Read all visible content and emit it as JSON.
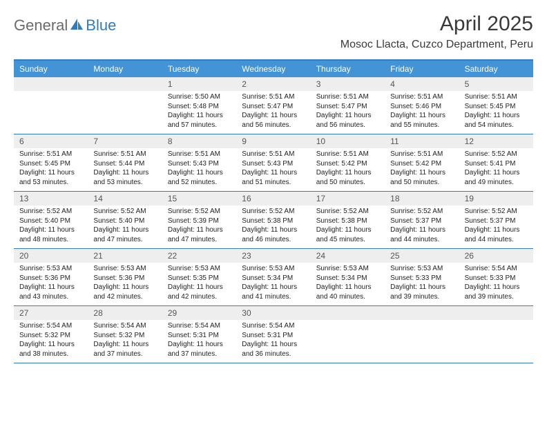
{
  "logo": {
    "general": "General",
    "blue": "Blue"
  },
  "title": "April 2025",
  "location": "Mosoc Llacta, Cuzco Department, Peru",
  "header_bg": "#4294d6",
  "accent": "#2f7dc0",
  "dayHeaders": [
    "Sunday",
    "Monday",
    "Tuesday",
    "Wednesday",
    "Thursday",
    "Friday",
    "Saturday"
  ],
  "weeks": [
    [
      {
        "num": "",
        "sunrise": "",
        "sunset": "",
        "daylight": ""
      },
      {
        "num": "",
        "sunrise": "",
        "sunset": "",
        "daylight": ""
      },
      {
        "num": "1",
        "sunrise": "Sunrise: 5:50 AM",
        "sunset": "Sunset: 5:48 PM",
        "daylight": "Daylight: 11 hours and 57 minutes."
      },
      {
        "num": "2",
        "sunrise": "Sunrise: 5:51 AM",
        "sunset": "Sunset: 5:47 PM",
        "daylight": "Daylight: 11 hours and 56 minutes."
      },
      {
        "num": "3",
        "sunrise": "Sunrise: 5:51 AM",
        "sunset": "Sunset: 5:47 PM",
        "daylight": "Daylight: 11 hours and 56 minutes."
      },
      {
        "num": "4",
        "sunrise": "Sunrise: 5:51 AM",
        "sunset": "Sunset: 5:46 PM",
        "daylight": "Daylight: 11 hours and 55 minutes."
      },
      {
        "num": "5",
        "sunrise": "Sunrise: 5:51 AM",
        "sunset": "Sunset: 5:45 PM",
        "daylight": "Daylight: 11 hours and 54 minutes."
      }
    ],
    [
      {
        "num": "6",
        "sunrise": "Sunrise: 5:51 AM",
        "sunset": "Sunset: 5:45 PM",
        "daylight": "Daylight: 11 hours and 53 minutes."
      },
      {
        "num": "7",
        "sunrise": "Sunrise: 5:51 AM",
        "sunset": "Sunset: 5:44 PM",
        "daylight": "Daylight: 11 hours and 53 minutes."
      },
      {
        "num": "8",
        "sunrise": "Sunrise: 5:51 AM",
        "sunset": "Sunset: 5:43 PM",
        "daylight": "Daylight: 11 hours and 52 minutes."
      },
      {
        "num": "9",
        "sunrise": "Sunrise: 5:51 AM",
        "sunset": "Sunset: 5:43 PM",
        "daylight": "Daylight: 11 hours and 51 minutes."
      },
      {
        "num": "10",
        "sunrise": "Sunrise: 5:51 AM",
        "sunset": "Sunset: 5:42 PM",
        "daylight": "Daylight: 11 hours and 50 minutes."
      },
      {
        "num": "11",
        "sunrise": "Sunrise: 5:51 AM",
        "sunset": "Sunset: 5:42 PM",
        "daylight": "Daylight: 11 hours and 50 minutes."
      },
      {
        "num": "12",
        "sunrise": "Sunrise: 5:52 AM",
        "sunset": "Sunset: 5:41 PM",
        "daylight": "Daylight: 11 hours and 49 minutes."
      }
    ],
    [
      {
        "num": "13",
        "sunrise": "Sunrise: 5:52 AM",
        "sunset": "Sunset: 5:40 PM",
        "daylight": "Daylight: 11 hours and 48 minutes."
      },
      {
        "num": "14",
        "sunrise": "Sunrise: 5:52 AM",
        "sunset": "Sunset: 5:40 PM",
        "daylight": "Daylight: 11 hours and 47 minutes."
      },
      {
        "num": "15",
        "sunrise": "Sunrise: 5:52 AM",
        "sunset": "Sunset: 5:39 PM",
        "daylight": "Daylight: 11 hours and 47 minutes."
      },
      {
        "num": "16",
        "sunrise": "Sunrise: 5:52 AM",
        "sunset": "Sunset: 5:38 PM",
        "daylight": "Daylight: 11 hours and 46 minutes."
      },
      {
        "num": "17",
        "sunrise": "Sunrise: 5:52 AM",
        "sunset": "Sunset: 5:38 PM",
        "daylight": "Daylight: 11 hours and 45 minutes."
      },
      {
        "num": "18",
        "sunrise": "Sunrise: 5:52 AM",
        "sunset": "Sunset: 5:37 PM",
        "daylight": "Daylight: 11 hours and 44 minutes."
      },
      {
        "num": "19",
        "sunrise": "Sunrise: 5:52 AM",
        "sunset": "Sunset: 5:37 PM",
        "daylight": "Daylight: 11 hours and 44 minutes."
      }
    ],
    [
      {
        "num": "20",
        "sunrise": "Sunrise: 5:53 AM",
        "sunset": "Sunset: 5:36 PM",
        "daylight": "Daylight: 11 hours and 43 minutes."
      },
      {
        "num": "21",
        "sunrise": "Sunrise: 5:53 AM",
        "sunset": "Sunset: 5:36 PM",
        "daylight": "Daylight: 11 hours and 42 minutes."
      },
      {
        "num": "22",
        "sunrise": "Sunrise: 5:53 AM",
        "sunset": "Sunset: 5:35 PM",
        "daylight": "Daylight: 11 hours and 42 minutes."
      },
      {
        "num": "23",
        "sunrise": "Sunrise: 5:53 AM",
        "sunset": "Sunset: 5:34 PM",
        "daylight": "Daylight: 11 hours and 41 minutes."
      },
      {
        "num": "24",
        "sunrise": "Sunrise: 5:53 AM",
        "sunset": "Sunset: 5:34 PM",
        "daylight": "Daylight: 11 hours and 40 minutes."
      },
      {
        "num": "25",
        "sunrise": "Sunrise: 5:53 AM",
        "sunset": "Sunset: 5:33 PM",
        "daylight": "Daylight: 11 hours and 39 minutes."
      },
      {
        "num": "26",
        "sunrise": "Sunrise: 5:54 AM",
        "sunset": "Sunset: 5:33 PM",
        "daylight": "Daylight: 11 hours and 39 minutes."
      }
    ],
    [
      {
        "num": "27",
        "sunrise": "Sunrise: 5:54 AM",
        "sunset": "Sunset: 5:32 PM",
        "daylight": "Daylight: 11 hours and 38 minutes."
      },
      {
        "num": "28",
        "sunrise": "Sunrise: 5:54 AM",
        "sunset": "Sunset: 5:32 PM",
        "daylight": "Daylight: 11 hours and 37 minutes."
      },
      {
        "num": "29",
        "sunrise": "Sunrise: 5:54 AM",
        "sunset": "Sunset: 5:31 PM",
        "daylight": "Daylight: 11 hours and 37 minutes."
      },
      {
        "num": "30",
        "sunrise": "Sunrise: 5:54 AM",
        "sunset": "Sunset: 5:31 PM",
        "daylight": "Daylight: 11 hours and 36 minutes."
      },
      {
        "num": "",
        "sunrise": "",
        "sunset": "",
        "daylight": ""
      },
      {
        "num": "",
        "sunrise": "",
        "sunset": "",
        "daylight": ""
      },
      {
        "num": "",
        "sunrise": "",
        "sunset": "",
        "daylight": ""
      }
    ]
  ]
}
